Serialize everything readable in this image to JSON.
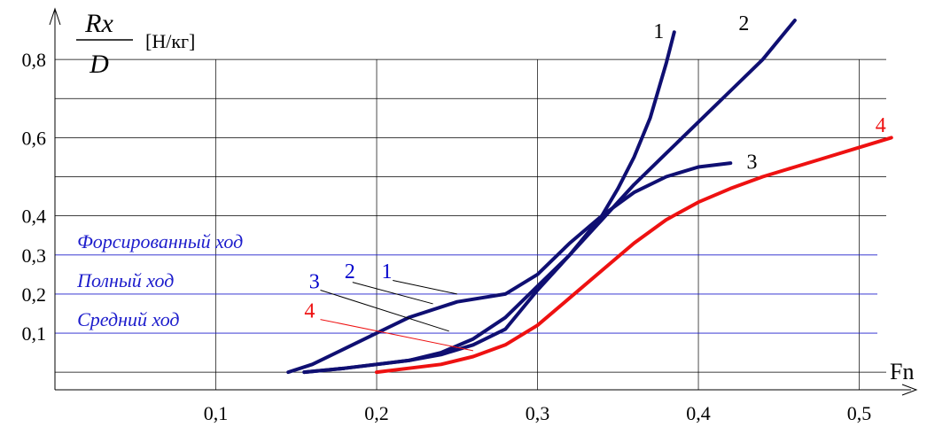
{
  "chart_data": {
    "type": "line",
    "title": "",
    "ylabel_numerator": "Rx",
    "ylabel_denominator": "D",
    "ylabel_unit": "[Н/кг]",
    "xlabel": "Fn",
    "xlim": [
      0.0,
      0.53
    ],
    "ylim": [
      -0.045,
      0.925
    ],
    "x_ticks": [
      {
        "value": 0.1,
        "label": "0,1"
      },
      {
        "value": 0.2,
        "label": "0,2"
      },
      {
        "value": 0.3,
        "label": "0,3"
      },
      {
        "value": 0.4,
        "label": "0,4"
      },
      {
        "value": 0.5,
        "label": "0,5"
      }
    ],
    "y_ticks": [
      {
        "value": 0.1,
        "label": "0,1"
      },
      {
        "value": 0.2,
        "label": "0,2"
      },
      {
        "value": 0.3,
        "label": "0,3"
      },
      {
        "value": 0.4,
        "label": "0,4"
      },
      {
        "value": 0.6,
        "label": "0,6"
      },
      {
        "value": 0.8,
        "label": "0,8"
      }
    ],
    "grid": true,
    "grid_y": [
      0.0,
      0.4,
      0.5,
      0.6,
      0.7,
      0.8
    ],
    "grid_x": [
      0.1,
      0.2,
      0.3,
      0.4,
      0.5
    ],
    "regimes": [
      {
        "label": "Форсированный ход",
        "y": 0.3,
        "label_x": 0.005
      },
      {
        "label": "Полный ход",
        "y": 0.2,
        "label_x": 0.005
      },
      {
        "label": "Средний ход",
        "y": 0.1,
        "label_x": 0.005
      }
    ],
    "regime_color": "#1d1dcc",
    "series": [
      {
        "name": "1",
        "color": "#0f0f72",
        "label_color": "#000000",
        "x": [
          0.155,
          0.18,
          0.2,
          0.22,
          0.24,
          0.26,
          0.28,
          0.3,
          0.32,
          0.34,
          0.35,
          0.36,
          0.37,
          0.38,
          0.385
        ],
        "y": [
          0.0,
          0.01,
          0.02,
          0.03,
          0.045,
          0.07,
          0.11,
          0.21,
          0.3,
          0.4,
          0.47,
          0.55,
          0.65,
          0.79,
          0.87
        ],
        "label_pos": [
          0.372,
          0.855
        ]
      },
      {
        "name": "2",
        "color": "#0f0f72",
        "label_color": "#000000",
        "x": [
          0.155,
          0.18,
          0.2,
          0.22,
          0.24,
          0.26,
          0.28,
          0.3,
          0.32,
          0.34,
          0.36,
          0.38,
          0.4,
          0.42,
          0.44,
          0.46
        ],
        "y": [
          0.0,
          0.01,
          0.02,
          0.03,
          0.05,
          0.085,
          0.14,
          0.22,
          0.3,
          0.39,
          0.48,
          0.56,
          0.64,
          0.72,
          0.8,
          0.9
        ],
        "label_pos": [
          0.425,
          0.875
        ]
      },
      {
        "name": "3",
        "color": "#0f0f72",
        "label_color": "#000000",
        "x": [
          0.145,
          0.16,
          0.18,
          0.2,
          0.22,
          0.25,
          0.28,
          0.3,
          0.32,
          0.34,
          0.36,
          0.38,
          0.4,
          0.42
        ],
        "y": [
          0.0,
          0.02,
          0.06,
          0.1,
          0.14,
          0.18,
          0.2,
          0.25,
          0.33,
          0.4,
          0.46,
          0.5,
          0.525,
          0.535
        ],
        "label_pos": [
          0.43,
          0.52
        ]
      },
      {
        "name": "4",
        "color": "#ee1111",
        "label_color": "#ee1111",
        "x": [
          0.2,
          0.22,
          0.24,
          0.26,
          0.28,
          0.3,
          0.32,
          0.34,
          0.36,
          0.38,
          0.4,
          0.42,
          0.44,
          0.46,
          0.48,
          0.5,
          0.52
        ],
        "y": [
          0.0,
          0.01,
          0.02,
          0.04,
          0.07,
          0.12,
          0.19,
          0.26,
          0.33,
          0.39,
          0.435,
          0.47,
          0.5,
          0.525,
          0.55,
          0.575,
          0.6
        ],
        "label_pos": [
          0.51,
          0.615
        ]
      }
    ],
    "leaders": [
      {
        "label": "1",
        "color": "#0000cc",
        "line_color": "#000000",
        "label_pos": [
          0.203,
          0.24
        ],
        "from": [
          0.21,
          0.235
        ],
        "to": [
          0.25,
          0.2
        ]
      },
      {
        "label": "2",
        "color": "#0000cc",
        "line_color": "#000000",
        "label_pos": [
          0.18,
          0.24
        ],
        "from": [
          0.185,
          0.23
        ],
        "to": [
          0.235,
          0.175
        ]
      },
      {
        "label": "3",
        "color": "#0000cc",
        "line_color": "#000000",
        "label_pos": [
          0.158,
          0.215
        ],
        "from": [
          0.165,
          0.21
        ],
        "to": [
          0.245,
          0.105
        ]
      },
      {
        "label": "4",
        "color": "#ee1111",
        "line_color": "#ee1111",
        "label_pos": [
          0.155,
          0.14
        ],
        "from": [
          0.165,
          0.135
        ],
        "to": [
          0.26,
          0.055
        ]
      }
    ]
  }
}
